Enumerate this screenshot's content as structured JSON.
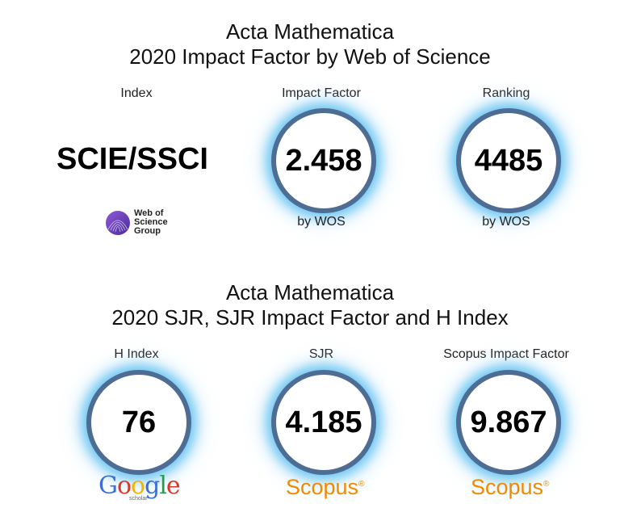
{
  "section1": {
    "title_line1": "Acta Mathematica",
    "title_line2": "2020 Impact Factor by Web of Science",
    "index": {
      "label": "Index",
      "value": "SCIE/SSCI",
      "logo_text": [
        "Web of",
        "Science",
        "Group"
      ]
    },
    "impact_factor": {
      "label": "Impact Factor",
      "value": "2.458",
      "sub": "by WOS"
    },
    "ranking": {
      "label": "Ranking",
      "value": "4485",
      "sub": "by WOS"
    }
  },
  "section2": {
    "title_line1": "Acta Mathematica",
    "title_line2": "2020 SJR, SJR Impact Factor and H Index",
    "h_index": {
      "label": "H Index",
      "value": "76",
      "logo": "Google",
      "logo_small": "scholar"
    },
    "sjr": {
      "label": "SJR",
      "value": "4.185",
      "logo": "Scopus"
    },
    "scopus_if": {
      "label": "Scopus Impact Factor",
      "value": "9.867",
      "logo": "Scopus"
    }
  },
  "colors": {
    "ring": "#4d6d94",
    "glow": "#5abef0",
    "scopus": "#f08a00"
  },
  "icons": [
    "web-of-science-logo",
    "google-scholar-logo",
    "scopus-logo"
  ]
}
